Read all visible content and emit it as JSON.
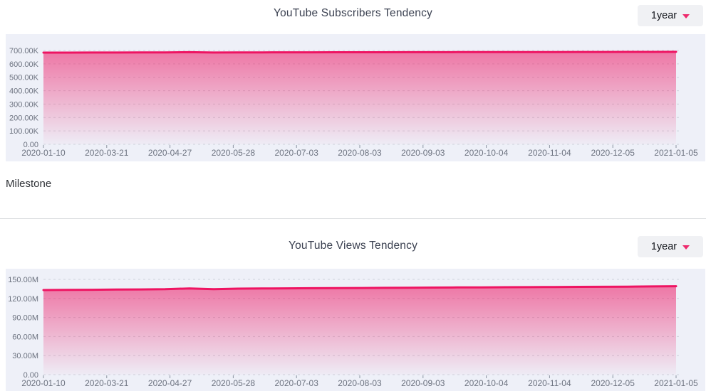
{
  "colors": {
    "line": "#ee1462",
    "area_fill_top": "rgba(238,20,98,0.55)",
    "area_fill_bottom": "rgba(238,20,98,0.02)",
    "panel_background": "#eef0f8",
    "grid": "#ced2db",
    "axis_text": "#6d7380",
    "accent": "#ee2a6d"
  },
  "milestone": {
    "label": "Milestone"
  },
  "chart_data": [
    {
      "type": "area",
      "title": "YouTube Subscribers Tendency",
      "range_selector": "1year",
      "legend": "none",
      "grid": "horizontal-dashed",
      "values_unit": "thousands (K subscribers)",
      "x_tick_labels": [
        "2020-01-10",
        "2020-03-21",
        "2020-04-27",
        "2020-05-28",
        "2020-07-03",
        "2020-08-03",
        "2020-09-03",
        "2020-10-04",
        "2020-11-04",
        "2020-12-05",
        "2021-01-05"
      ],
      "y_tick_labels": [
        "700.00K",
        "600.00K",
        "500.00K",
        "400.00K",
        "300.00K",
        "200.00K",
        "100.00K",
        "0.00"
      ],
      "y_ticks_values": [
        700,
        600,
        500,
        400,
        300,
        200,
        100,
        0
      ],
      "ylim": [
        0,
        745
      ],
      "values": [
        684.0,
        684.2,
        684.5,
        684.7,
        684.9,
        685.1,
        687.5,
        684.8,
        685.6,
        685.9,
        686.1,
        686.3,
        686.5,
        686.8,
        687.0,
        687.2,
        687.4,
        687.6,
        687.8,
        688.0,
        688.2,
        688.5,
        688.7,
        688.9,
        689.2,
        689.6,
        690.0
      ]
    },
    {
      "type": "area",
      "title": "YouTube Views Tendency",
      "range_selector": "1year",
      "legend": "none",
      "grid": "horizontal-dashed",
      "values_unit": "millions (M views)",
      "x_tick_labels": [
        "2020-01-10",
        "2020-03-21",
        "2020-04-27",
        "2020-05-28",
        "2020-07-03",
        "2020-08-03",
        "2020-09-03",
        "2020-10-04",
        "2020-11-04",
        "2020-12-05",
        "2021-01-05"
      ],
      "y_tick_labels": [
        "150.00M",
        "120.00M",
        "90.00M",
        "60.00M",
        "30.00M",
        "0.00"
      ],
      "y_ticks_values": [
        150,
        120,
        90,
        60,
        30,
        0
      ],
      "ylim": [
        0,
        167
      ],
      "values": [
        133.2,
        133.5,
        133.7,
        134.0,
        134.2,
        134.5,
        135.8,
        134.5,
        135.4,
        135.7,
        135.9,
        136.1,
        136.3,
        136.5,
        136.7,
        136.9,
        137.1,
        137.3,
        137.5,
        137.7,
        137.8,
        138.0,
        138.2,
        138.4,
        138.6,
        138.9,
        139.2
      ]
    }
  ]
}
